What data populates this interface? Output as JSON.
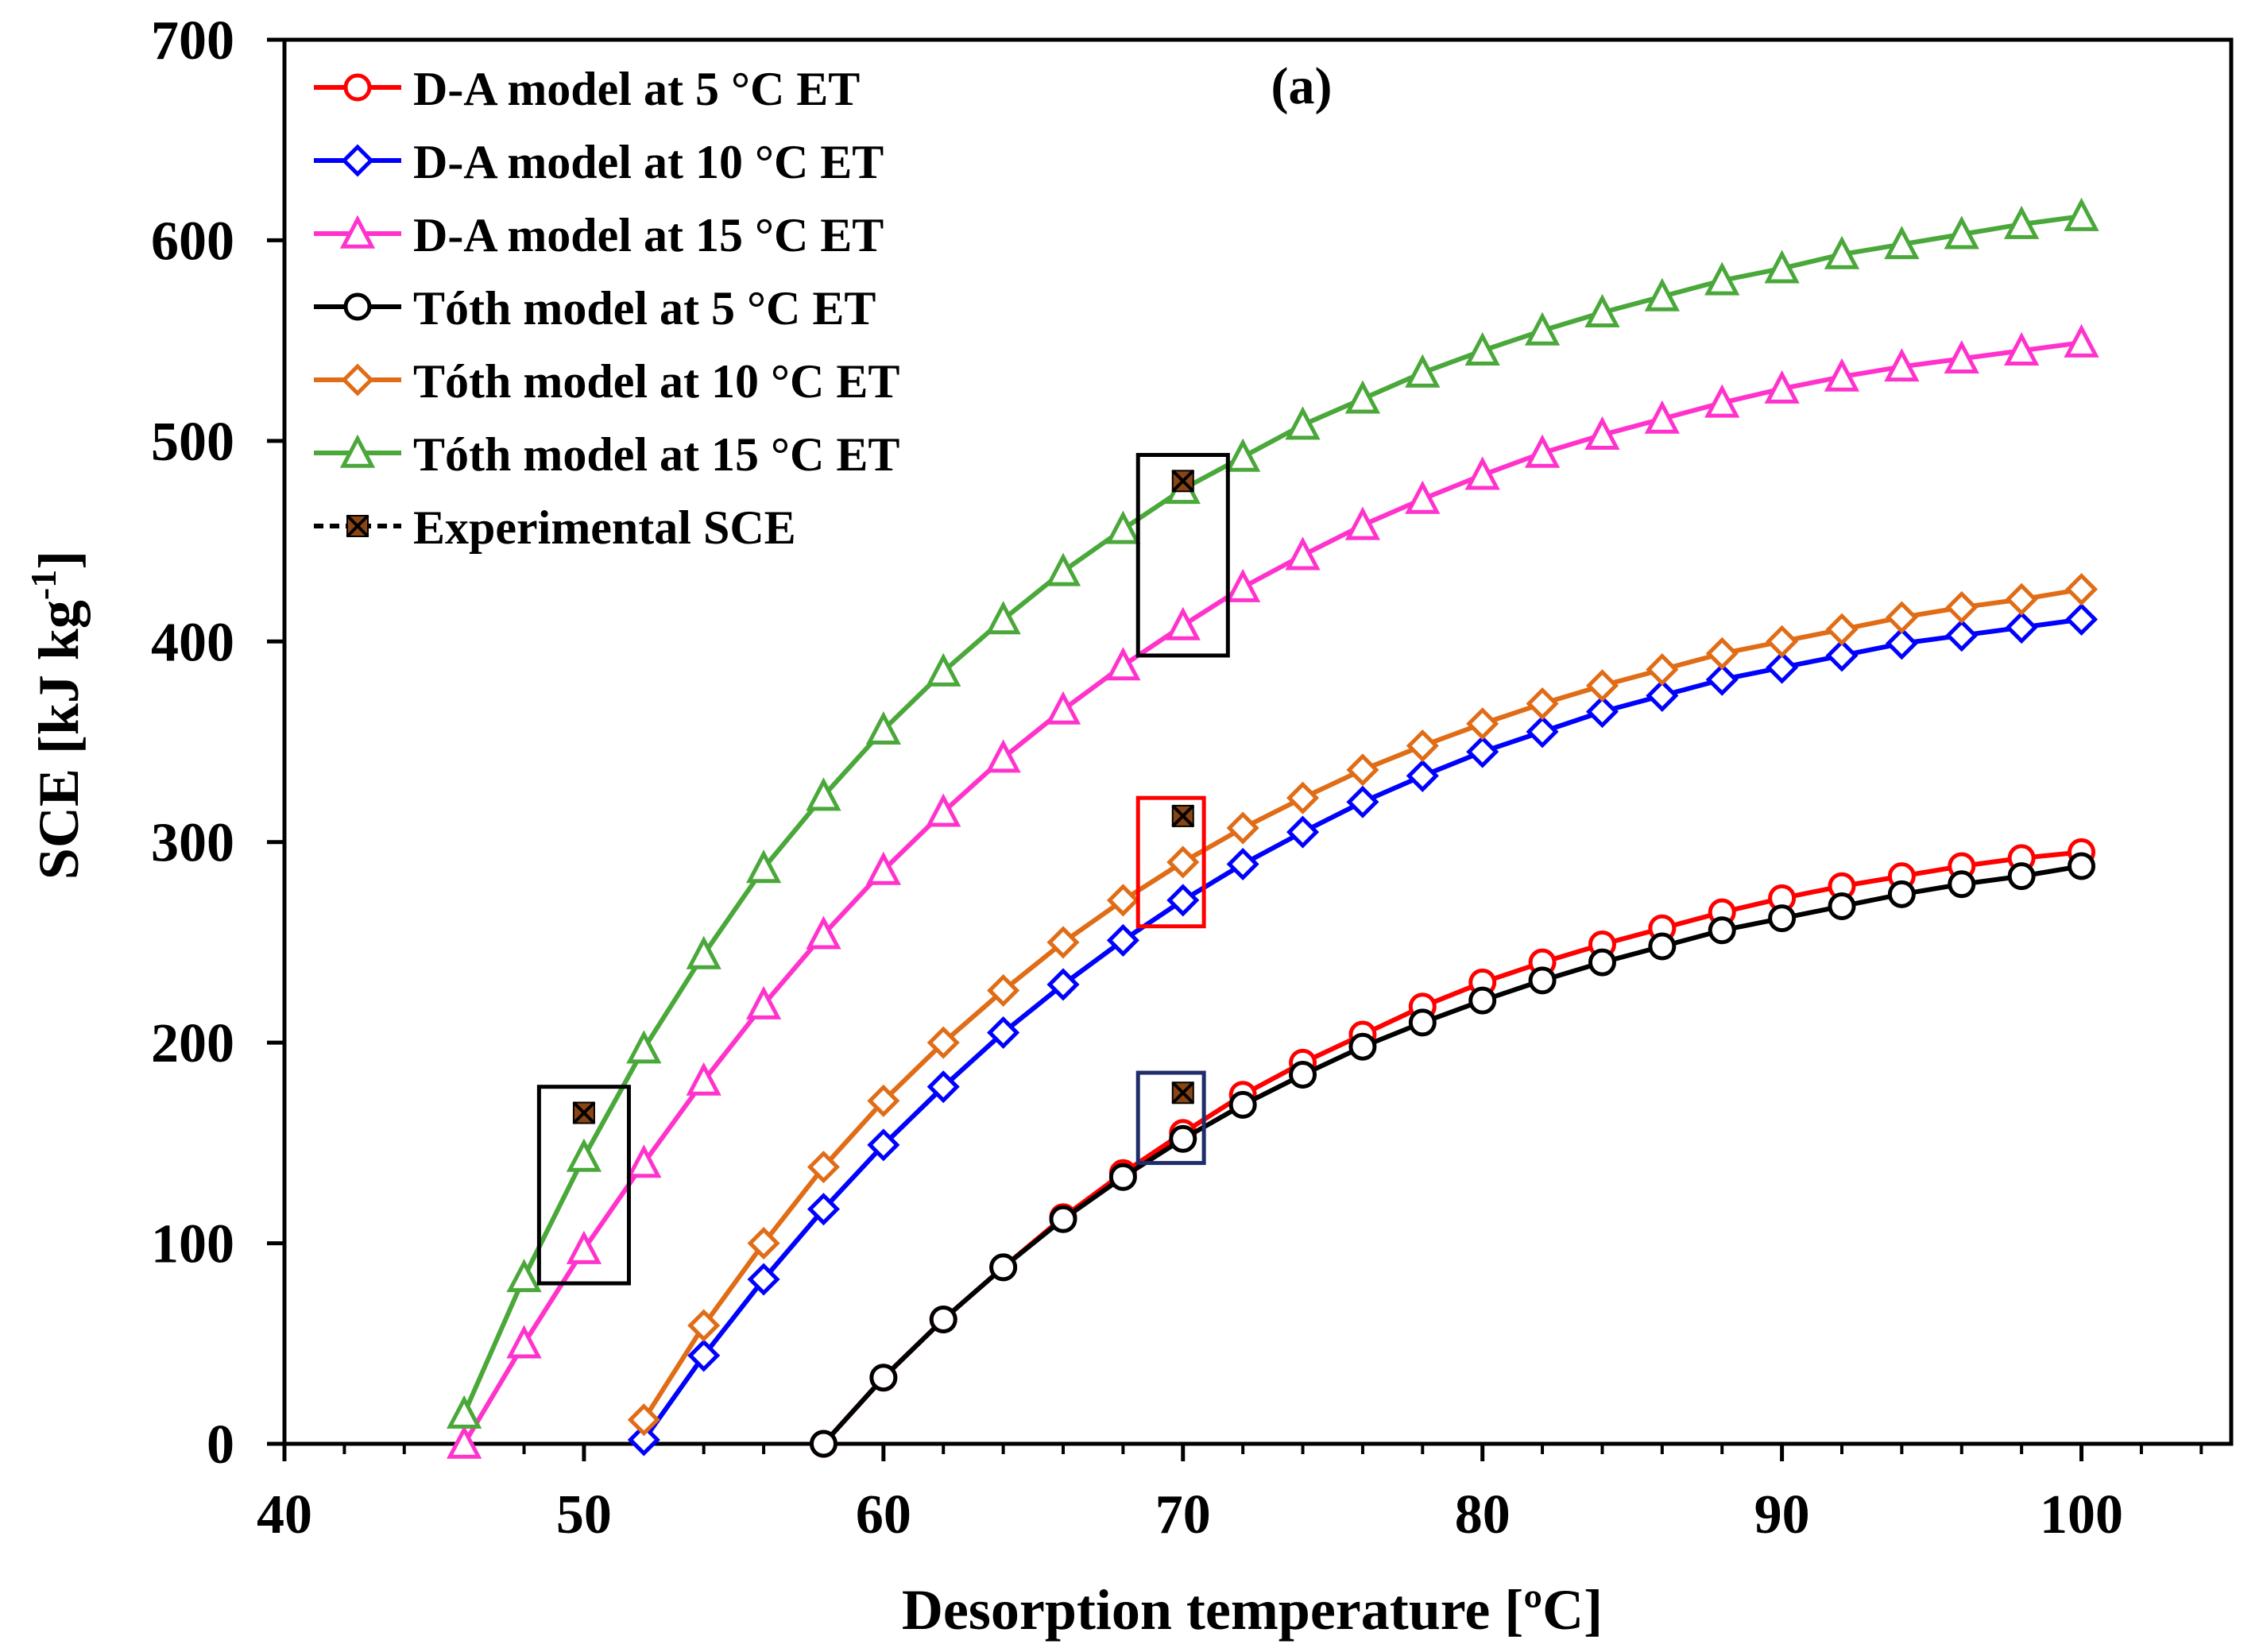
{
  "chart_data": {
    "type": "line",
    "title": "(a)",
    "xlabel": "Desorption temperature [ºC]",
    "ylabel": "SCE [kJ kg",
    "ylabel_sup": "-1",
    "ylabel_end": "]",
    "xlim": [
      40,
      105
    ],
    "ylim": [
      0,
      700
    ],
    "xticks": [
      40,
      50,
      60,
      70,
      80,
      90,
      100
    ],
    "yticks": [
      0,
      100,
      200,
      300,
      400,
      500,
      600,
      700
    ],
    "grid": false,
    "legend_position": "top-left",
    "series": [
      {
        "name": "D-A model at 5 °C ET",
        "color": "#ff0000",
        "marker": "circle",
        "x": [
          58,
          60,
          62,
          64,
          66,
          68,
          70,
          72,
          74,
          76,
          78,
          80,
          82,
          84,
          86,
          88,
          90,
          92,
          94,
          96,
          98,
          100
        ],
        "y": [
          0,
          33,
          62,
          88,
          113,
          135,
          155,
          174,
          190,
          204,
          218,
          230,
          240,
          249,
          257,
          265,
          272,
          278,
          283,
          288,
          292,
          295
        ]
      },
      {
        "name": "D-A model at 10 °C ET",
        "color": "#0000ff",
        "marker": "diamond",
        "x": [
          52,
          54,
          56,
          58,
          60,
          62,
          64,
          66,
          68,
          70,
          72,
          74,
          76,
          78,
          80,
          82,
          84,
          86,
          88,
          90,
          92,
          94,
          96,
          98,
          100
        ],
        "y": [
          2,
          44,
          82,
          117,
          149,
          178,
          205,
          229,
          251,
          271,
          289,
          305,
          320,
          333,
          345,
          355,
          365,
          373,
          381,
          387,
          393,
          399,
          403,
          407,
          411
        ]
      },
      {
        "name": "D-A model at 15 °C ET",
        "color": "#ff33cc",
        "marker": "triangle",
        "x": [
          46,
          48,
          50,
          52,
          54,
          56,
          58,
          60,
          62,
          64,
          66,
          68,
          70,
          72,
          74,
          76,
          78,
          80,
          82,
          84,
          86,
          88,
          90,
          92,
          94,
          96,
          98,
          100
        ],
        "y": [
          0,
          50,
          97,
          140,
          181,
          219,
          254,
          286,
          315,
          342,
          366,
          388,
          408,
          427,
          443,
          458,
          471,
          483,
          494,
          503,
          511,
          519,
          526,
          532,
          537,
          541,
          545,
          549
        ]
      },
      {
        "name": "Tóth model at 5 °C ET",
        "color": "#000000",
        "marker": "circle",
        "x": [
          58,
          60,
          62,
          64,
          66,
          68,
          70,
          72,
          74,
          76,
          78,
          80,
          82,
          84,
          86,
          88,
          90,
          92,
          94,
          96,
          98,
          100
        ],
        "y": [
          0,
          33,
          62,
          88,
          112,
          133,
          152,
          169,
          184,
          198,
          210,
          221,
          231,
          240,
          248,
          256,
          262,
          268,
          274,
          279,
          283,
          288
        ]
      },
      {
        "name": "Tóth model at 10 °C ET",
        "color": "#e06c16",
        "marker": "diamond",
        "x": [
          52,
          54,
          56,
          58,
          60,
          62,
          64,
          66,
          68,
          70,
          72,
          74,
          76,
          78,
          80,
          82,
          84,
          86,
          88,
          90,
          92,
          94,
          96,
          98,
          100
        ],
        "y": [
          12,
          59,
          100,
          138,
          171,
          200,
          226,
          250,
          271,
          290,
          307,
          322,
          336,
          348,
          359,
          369,
          378,
          386,
          394,
          400,
          406,
          412,
          417,
          421,
          426
        ]
      },
      {
        "name": "Tóth model at 15 °C ET",
        "color": "#4aa83a",
        "marker": "triangle",
        "x": [
          46,
          48,
          50,
          52,
          54,
          56,
          58,
          60,
          62,
          64,
          66,
          68,
          70,
          72,
          74,
          76,
          78,
          80,
          82,
          84,
          86,
          88,
          90,
          92,
          94,
          96,
          98,
          100
        ],
        "y": [
          15,
          83,
          143,
          197,
          244,
          287,
          323,
          356,
          385,
          411,
          435,
          456,
          476,
          492,
          508,
          521,
          534,
          545,
          555,
          564,
          572,
          580,
          586,
          593,
          598,
          603,
          608,
          612
        ]
      }
    ],
    "experimental": {
      "name": "Experimental SCE",
      "color": "#8b4513",
      "points": [
        {
          "x": 50,
          "y": 165
        },
        {
          "x": 70,
          "y": 175
        },
        {
          "x": 70,
          "y": 313
        },
        {
          "x": 70,
          "y": 480
        }
      ]
    },
    "annotation_boxes": [
      {
        "x": [
          48.5,
          51.5
        ],
        "y": [
          80,
          178
        ],
        "color": "#000000"
      },
      {
        "x": [
          68.5,
          71.5
        ],
        "y": [
          393,
          493
        ],
        "color": "#000000"
      },
      {
        "x": [
          68.5,
          70.7
        ],
        "y": [
          258,
          322
        ],
        "color": "#ff0000"
      },
      {
        "x": [
          68.5,
          70.7
        ],
        "y": [
          140,
          185
        ],
        "color": "#1f2d6b"
      }
    ]
  }
}
